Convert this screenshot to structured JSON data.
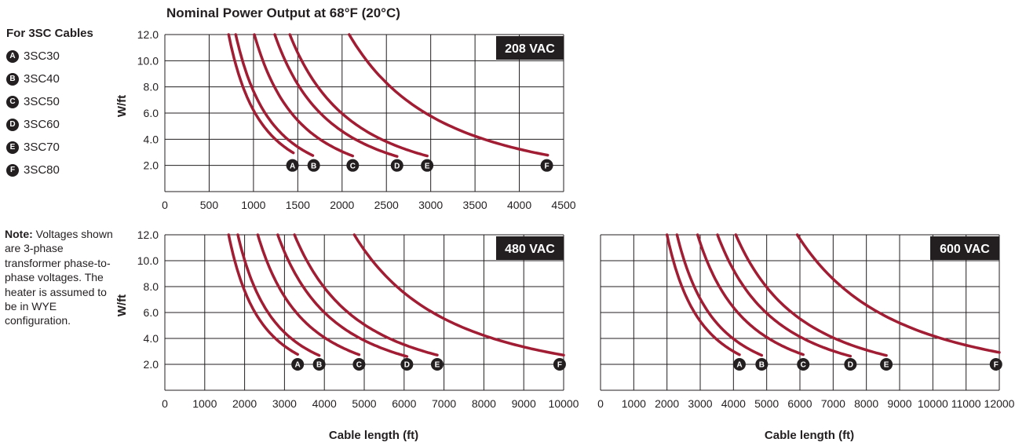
{
  "title": "Nominal Power Output at 68°F (20°C)",
  "legend": {
    "heading": "For 3SC Cables",
    "items": [
      {
        "marker": "A",
        "label": "3SC30"
      },
      {
        "marker": "B",
        "label": "3SC40"
      },
      {
        "marker": "C",
        "label": "3SC50"
      },
      {
        "marker": "D",
        "label": "3SC60"
      },
      {
        "marker": "E",
        "label": "3SC70"
      },
      {
        "marker": "F",
        "label": "3SC80"
      }
    ]
  },
  "note": {
    "label": "Note:",
    "text": "Voltages shown are 3-phase transformer phase-to-phase voltages. The heater is assumed to be in WYE configuration."
  },
  "colors": {
    "curve": "#a11d33",
    "text": "#231f20",
    "marker": "#231f20",
    "grid": "#231f20"
  },
  "chart_data": [
    {
      "type": "line",
      "voltage_label": "208 VAC",
      "xlabel": "",
      "ylabel": "W/ft",
      "xlim": [
        0,
        4500
      ],
      "ylim": [
        0,
        12.0
      ],
      "x_ticks": [
        0,
        500,
        1000,
        1500,
        2000,
        2500,
        3000,
        3500,
        4000,
        4500
      ],
      "y_ticks": [
        2.0,
        4.0,
        6.0,
        8.0,
        10.0,
        12.0
      ],
      "y_tick_labels": [
        "2.0",
        "4.0",
        "6.0",
        "8.0",
        "10.0",
        "12.0"
      ],
      "grid": true,
      "series": [
        {
          "name": "A",
          "start_x": 720,
          "end_x": 1450,
          "marker_x": 1440
        },
        {
          "name": "B",
          "start_x": 800,
          "end_x": 1670,
          "marker_x": 1680
        },
        {
          "name": "C",
          "start_x": 1010,
          "end_x": 2120,
          "marker_x": 2120
        },
        {
          "name": "D",
          "start_x": 1240,
          "end_x": 2620,
          "marker_x": 2620
        },
        {
          "name": "E",
          "start_x": 1410,
          "end_x": 2960,
          "marker_x": 2960
        },
        {
          "name": "F",
          "start_x": 2080,
          "end_x": 4320,
          "marker_x": 4310
        }
      ]
    },
    {
      "type": "line",
      "voltage_label": "480 VAC",
      "xlabel": "Cable length (ft)",
      "ylabel": "W/ft",
      "xlim": [
        0,
        10000
      ],
      "ylim": [
        0,
        12.0
      ],
      "x_ticks": [
        0,
        1000,
        2000,
        3000,
        4000,
        5000,
        6000,
        7000,
        8000,
        9000,
        10000
      ],
      "y_ticks": [
        2.0,
        4.0,
        6.0,
        8.0,
        10.0,
        12.0
      ],
      "y_tick_labels": [
        "2.0",
        "4.0",
        "6.0",
        "8.0",
        "10.0",
        "12.0"
      ],
      "grid": true,
      "series": [
        {
          "name": "A",
          "start_x": 1600,
          "end_x": 3330,
          "marker_x": 3330
        },
        {
          "name": "B",
          "start_x": 1830,
          "end_x": 3870,
          "marker_x": 3870
        },
        {
          "name": "C",
          "start_x": 2330,
          "end_x": 4870,
          "marker_x": 4870
        },
        {
          "name": "D",
          "start_x": 2830,
          "end_x": 6070,
          "marker_x": 6070
        },
        {
          "name": "E",
          "start_x": 3250,
          "end_x": 6830,
          "marker_x": 6830
        },
        {
          "name": "F",
          "start_x": 4750,
          "end_x": 10000,
          "marker_x": 9900
        }
      ]
    },
    {
      "type": "line",
      "voltage_label": "600 VAC",
      "xlabel": "Cable length (ft)",
      "ylabel": "",
      "xlim": [
        0,
        12000
      ],
      "ylim": [
        0,
        12.0
      ],
      "x_ticks": [
        0,
        1000,
        2000,
        3000,
        4000,
        5000,
        6000,
        7000,
        8000,
        9000,
        10000,
        11000,
        12000
      ],
      "y_ticks": [
        2.0,
        4.0,
        6.0,
        8.0,
        10.0,
        12.0
      ],
      "y_tick_labels": [],
      "grid": true,
      "series": [
        {
          "name": "A",
          "start_x": 2000,
          "end_x": 4180,
          "marker_x": 4180
        },
        {
          "name": "B",
          "start_x": 2300,
          "end_x": 4850,
          "marker_x": 4850
        },
        {
          "name": "C",
          "start_x": 2920,
          "end_x": 6100,
          "marker_x": 6100
        },
        {
          "name": "D",
          "start_x": 3520,
          "end_x": 7520,
          "marker_x": 7520
        },
        {
          "name": "E",
          "start_x": 4070,
          "end_x": 8600,
          "marker_x": 8600
        },
        {
          "name": "F",
          "start_x": 5920,
          "end_x": 12000,
          "marker_x": 11900
        }
      ]
    }
  ]
}
